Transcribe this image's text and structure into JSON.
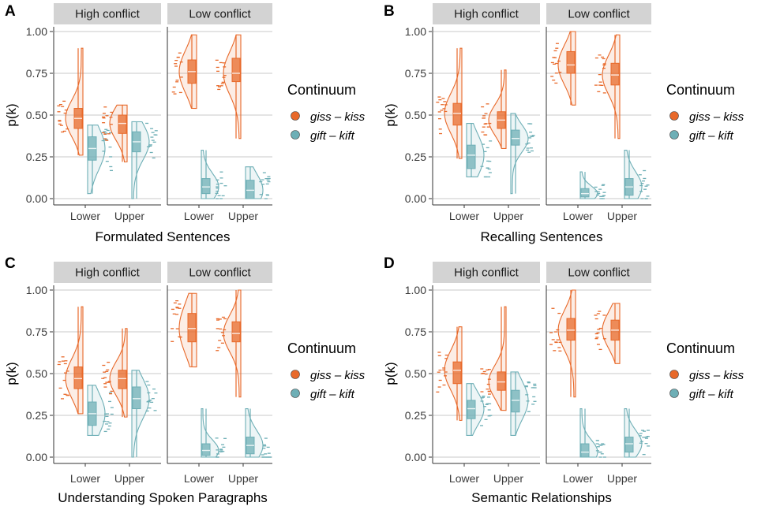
{
  "colors": {
    "giss_kiss": "#E8692A",
    "gift_kift": "#6EAFB6",
    "strip_bg": "#D3D3D3",
    "grid": "#C8C8C8",
    "axis": "#333333"
  },
  "legend": {
    "title": "Continuum",
    "items": [
      {
        "key": "giss_kiss",
        "label": "giss – kiss"
      },
      {
        "key": "gift_kift",
        "label": "gift – kift"
      }
    ]
  },
  "chart_data": [
    {
      "panel": "A",
      "type": "raincloud",
      "xlabel": "Formulated Sentences",
      "ylabel": "p(k)",
      "ylim": [
        0,
        1
      ],
      "yticks": [
        "0.00",
        "0.25",
        "0.50",
        "0.75",
        "1.00"
      ],
      "facets": [
        {
          "label": "High conflict",
          "groups": [
            {
              "x": "Lower",
              "giss_kiss": {
                "min": 0.26,
                "q1": 0.42,
                "median": 0.48,
                "q3": 0.54,
                "max": 0.9
              },
              "gift_kift": {
                "min": 0.03,
                "q1": 0.23,
                "median": 0.3,
                "q3": 0.37,
                "max": 0.44
              }
            },
            {
              "x": "Upper",
              "giss_kiss": {
                "min": 0.22,
                "q1": 0.39,
                "median": 0.45,
                "q3": 0.5,
                "max": 0.56
              },
              "gift_kift": {
                "min": 0.0,
                "q1": 0.28,
                "median": 0.34,
                "q3": 0.4,
                "max": 0.46
              }
            }
          ]
        },
        {
          "label": "Low conflict",
          "groups": [
            {
              "x": "Lower",
              "giss_kiss": {
                "min": 0.54,
                "q1": 0.69,
                "median": 0.76,
                "q3": 0.83,
                "max": 0.98
              },
              "gift_kift": {
                "min": 0.0,
                "q1": 0.03,
                "median": 0.07,
                "q3": 0.12,
                "max": 0.29
              }
            },
            {
              "x": "Upper",
              "giss_kiss": {
                "min": 0.36,
                "q1": 0.7,
                "median": 0.75,
                "q3": 0.84,
                "max": 0.98
              },
              "gift_kift": {
                "min": 0.0,
                "q1": 0.0,
                "median": 0.05,
                "q3": 0.11,
                "max": 0.19
              }
            }
          ]
        }
      ]
    },
    {
      "panel": "B",
      "type": "raincloud",
      "xlabel": "Recalling Sentences",
      "ylabel": "p(k)",
      "ylim": [
        0,
        1
      ],
      "yticks": [
        "0.00",
        "0.25",
        "0.50",
        "0.75",
        "1.00"
      ],
      "facets": [
        {
          "label": "High conflict",
          "groups": [
            {
              "x": "Lower",
              "giss_kiss": {
                "min": 0.24,
                "q1": 0.44,
                "median": 0.51,
                "q3": 0.57,
                "max": 0.9
              },
              "gift_kift": {
                "min": 0.13,
                "q1": 0.18,
                "median": 0.26,
                "q3": 0.32,
                "max": 0.45
              }
            },
            {
              "x": "Upper",
              "giss_kiss": {
                "min": 0.3,
                "q1": 0.42,
                "median": 0.47,
                "q3": 0.52,
                "max": 0.77
              },
              "gift_kift": {
                "min": 0.03,
                "q1": 0.32,
                "median": 0.36,
                "q3": 0.41,
                "max": 0.51
              }
            }
          ]
        },
        {
          "label": "Low conflict",
          "groups": [
            {
              "x": "Lower",
              "giss_kiss": {
                "min": 0.56,
                "q1": 0.75,
                "median": 0.8,
                "q3": 0.88,
                "max": 1.0
              },
              "gift_kift": {
                "min": 0.0,
                "q1": 0.01,
                "median": 0.03,
                "q3": 0.06,
                "max": 0.16
              }
            },
            {
              "x": "Upper",
              "giss_kiss": {
                "min": 0.36,
                "q1": 0.68,
                "median": 0.74,
                "q3": 0.81,
                "max": 0.98
              },
              "gift_kift": {
                "min": 0.0,
                "q1": 0.02,
                "median": 0.07,
                "q3": 0.12,
                "max": 0.29
              }
            }
          ]
        }
      ]
    },
    {
      "panel": "C",
      "type": "raincloud",
      "xlabel": "Understanding Spoken Paragraphs",
      "ylabel": "p(k)",
      "ylim": [
        0,
        1
      ],
      "yticks": [
        "0.00",
        "0.25",
        "0.50",
        "0.75",
        "1.00"
      ],
      "facets": [
        {
          "label": "High conflict",
          "groups": [
            {
              "x": "Lower",
              "giss_kiss": {
                "min": 0.26,
                "q1": 0.41,
                "median": 0.47,
                "q3": 0.54,
                "max": 0.9
              },
              "gift_kift": {
                "min": 0.13,
                "q1": 0.19,
                "median": 0.26,
                "q3": 0.33,
                "max": 0.43
              }
            },
            {
              "x": "Upper",
              "giss_kiss": {
                "min": 0.24,
                "q1": 0.41,
                "median": 0.47,
                "q3": 0.52,
                "max": 0.77
              },
              "gift_kift": {
                "min": 0.0,
                "q1": 0.29,
                "median": 0.35,
                "q3": 0.42,
                "max": 0.52
              }
            }
          ]
        },
        {
          "label": "Low conflict",
          "groups": [
            {
              "x": "Lower",
              "giss_kiss": {
                "min": 0.54,
                "q1": 0.69,
                "median": 0.77,
                "q3": 0.86,
                "max": 0.98
              },
              "gift_kift": {
                "min": 0.0,
                "q1": 0.01,
                "median": 0.04,
                "q3": 0.08,
                "max": 0.29
              }
            },
            {
              "x": "Upper",
              "giss_kiss": {
                "min": 0.36,
                "q1": 0.69,
                "median": 0.74,
                "q3": 0.81,
                "max": 1.0
              },
              "gift_kift": {
                "min": 0.0,
                "q1": 0.02,
                "median": 0.07,
                "q3": 0.12,
                "max": 0.29
              }
            }
          ]
        }
      ]
    },
    {
      "panel": "D",
      "type": "raincloud",
      "xlabel": "Semantic Relationships",
      "ylabel": "p(k)",
      "ylim": [
        0,
        1
      ],
      "yticks": [
        "0.00",
        "0.25",
        "0.50",
        "0.75",
        "1.00"
      ],
      "facets": [
        {
          "label": "High conflict",
          "groups": [
            {
              "x": "Lower",
              "giss_kiss": {
                "min": 0.22,
                "q1": 0.44,
                "median": 0.52,
                "q3": 0.57,
                "max": 0.78
              },
              "gift_kift": {
                "min": 0.13,
                "q1": 0.23,
                "median": 0.29,
                "q3": 0.34,
                "max": 0.44
              }
            },
            {
              "x": "Upper",
              "giss_kiss": {
                "min": 0.28,
                "q1": 0.4,
                "median": 0.45,
                "q3": 0.51,
                "max": 0.9
              },
              "gift_kift": {
                "min": 0.13,
                "q1": 0.27,
                "median": 0.34,
                "q3": 0.4,
                "max": 0.51
              }
            }
          ]
        },
        {
          "label": "Low conflict",
          "groups": [
            {
              "x": "Lower",
              "giss_kiss": {
                "min": 0.36,
                "q1": 0.7,
                "median": 0.76,
                "q3": 0.83,
                "max": 1.0
              },
              "gift_kift": {
                "min": 0.0,
                "q1": 0.0,
                "median": 0.03,
                "q3": 0.08,
                "max": 0.29
              }
            },
            {
              "x": "Upper",
              "giss_kiss": {
                "min": 0.56,
                "q1": 0.7,
                "median": 0.76,
                "q3": 0.82,
                "max": 0.92
              },
              "gift_kift": {
                "min": 0.0,
                "q1": 0.03,
                "median": 0.08,
                "q3": 0.12,
                "max": 0.29
              }
            }
          ]
        }
      ]
    }
  ]
}
